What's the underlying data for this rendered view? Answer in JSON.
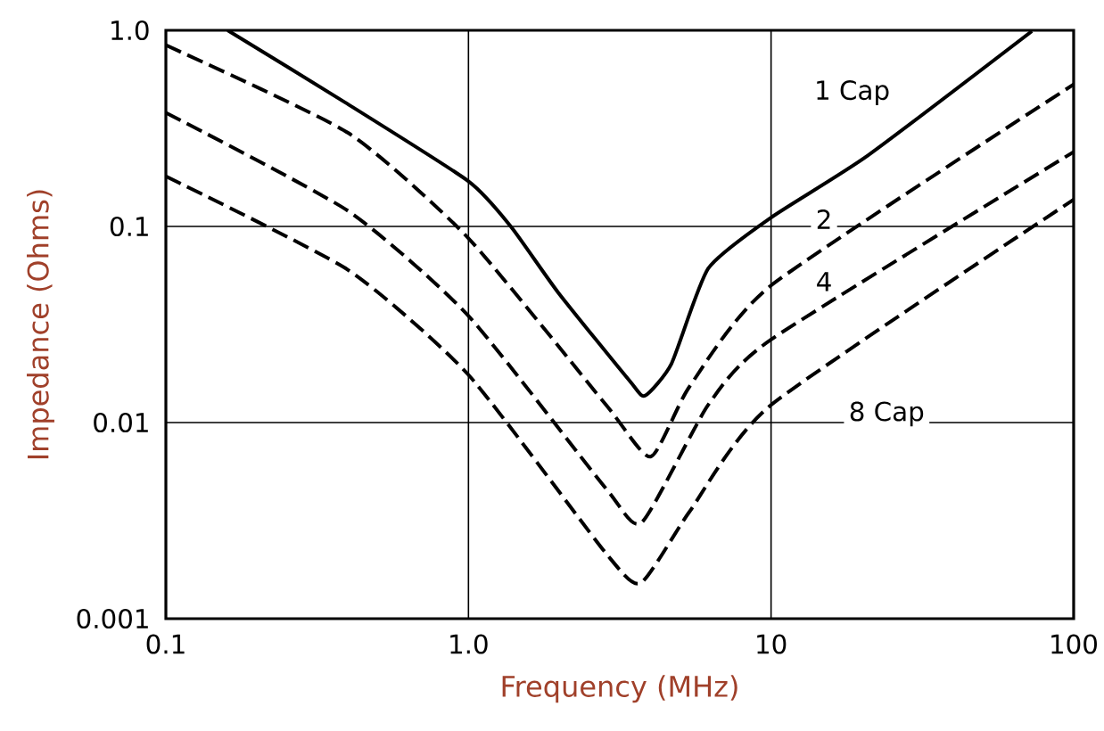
{
  "chart_data": {
    "type": "line",
    "xlabel": "Frequency (MHz)",
    "ylabel": "Impedance (Ohms)",
    "log": "xy",
    "grid": true,
    "legend": false,
    "marker": "none",
    "xlim": [
      0.1,
      100
    ],
    "ylim": [
      0.001,
      1
    ],
    "xticks": [
      0.1,
      {
        "value": 1,
        "label": "1.0"
      },
      10,
      100
    ],
    "yticks": [
      0.001,
      0.01,
      0.1,
      {
        "value": 1,
        "label": "1.0"
      }
    ],
    "series": [
      {
        "name": "1 Cap",
        "color": "#000000",
        "line_style": "solid",
        "x": [
          0.16,
          0.39,
          1.0,
          1.38,
          1.98,
          3.41,
          3.83,
          4.69,
          6.2,
          10,
          20.9,
          72.8
        ],
        "values": [
          1.0,
          0.43,
          0.17,
          0.1,
          0.046,
          0.0163,
          0.0137,
          0.02,
          0.061,
          0.111,
          0.23,
          0.99
        ]
      },
      {
        "name": "2",
        "color": "#000000",
        "line_style": "dashed",
        "x": [
          0.1,
          0.4,
          1.0,
          2.85,
          4.0,
          5.37,
          10,
          100
        ],
        "values": [
          0.84,
          0.3,
          0.087,
          0.0123,
          0.0067,
          0.0152,
          0.05,
          0.53
        ]
      },
      {
        "name": "4",
        "color": "#000000",
        "line_style": "dashed",
        "x": [
          0.1,
          0.4,
          1.0,
          2.85,
          3.74,
          6.2,
          10,
          100
        ],
        "values": [
          0.38,
          0.12,
          0.035,
          0.0046,
          0.0031,
          0.0123,
          0.0265,
          0.24
        ]
      },
      {
        "name": "8 Cap",
        "color": "#000000",
        "line_style": "dashed",
        "x": [
          0.1,
          0.4,
          1.0,
          2.85,
          3.71,
          5.37,
          10,
          100
        ],
        "values": [
          0.18,
          0.06,
          0.0175,
          0.00215,
          0.00152,
          0.0035,
          0.0123,
          0.137
        ]
      }
    ]
  }
}
